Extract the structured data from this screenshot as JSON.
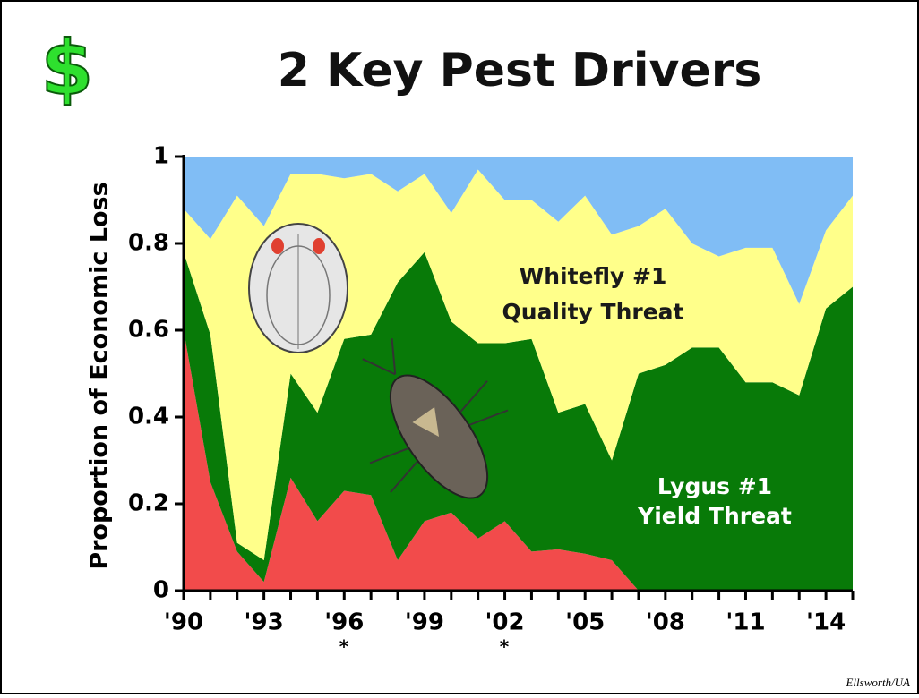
{
  "logo": "$",
  "source": "Ellsworth/UA",
  "chart_data": {
    "type": "stacked_area",
    "title": "2 Key Pest Drivers",
    "y_label": "Proportion of Economic Loss",
    "categories": [
      "'90",
      null,
      null,
      "'93",
      null,
      null,
      "'96",
      null,
      null,
      "'99",
      null,
      null,
      "'02",
      null,
      null,
      "'05",
      null,
      null,
      "'08",
      null,
      null,
      "'11",
      null,
      null,
      "'14",
      null
    ],
    "ylim": [
      0,
      1
    ],
    "yticks": [
      0,
      0.2,
      0.4,
      0.6,
      0.8,
      1
    ],
    "series": [
      {
        "color": "#f24b4b",
        "values": [
          0.6,
          0.25,
          0.09,
          0.02,
          0.26,
          0.16,
          0.23,
          0.22,
          0.07,
          0.16,
          0.18,
          0.12,
          0.16,
          0.09,
          0.095,
          0.085,
          0.07,
          0,
          0,
          0,
          0,
          0,
          0,
          0,
          0,
          0
        ]
      },
      {
        "color": "#087a08",
        "values": [
          0.18,
          0.34,
          0.02,
          0.05,
          0.24,
          0.25,
          0.35,
          0.37,
          0.64,
          0.62,
          0.44,
          0.45,
          0.41,
          0.49,
          0.315,
          0.345,
          0.23,
          0.5,
          0.52,
          0.56,
          0.56,
          0.48,
          0.48,
          0.45,
          0.65,
          0.7
        ]
      },
      {
        "color": "#ffff8a",
        "values": [
          0.1,
          0.22,
          0.8,
          0.77,
          0.46,
          0.55,
          0.37,
          0.37,
          0.21,
          0.18,
          0.25,
          0.4,
          0.33,
          0.32,
          0.44,
          0.48,
          0.52,
          0.34,
          0.36,
          0.24,
          0.21,
          0.31,
          0.31,
          0.21,
          0.18,
          0.21
        ]
      },
      {
        "color": "#80bdf5",
        "values": [
          0.12,
          0.19,
          0.09,
          0.16,
          0.04,
          0.04,
          0.05,
          0.04,
          0.08,
          0.04,
          0.13,
          0.03,
          0.1,
          0.1,
          0.15,
          0.09,
          0.18,
          0.16,
          0.12,
          0.2,
          0.23,
          0.21,
          0.21,
          0.34,
          0.17,
          0.09
        ]
      }
    ],
    "annotations": [
      "Whitefly #1",
      "Quality Threat",
      "Lygus #1",
      "Yield Threat",
      "*",
      "*"
    ]
  }
}
